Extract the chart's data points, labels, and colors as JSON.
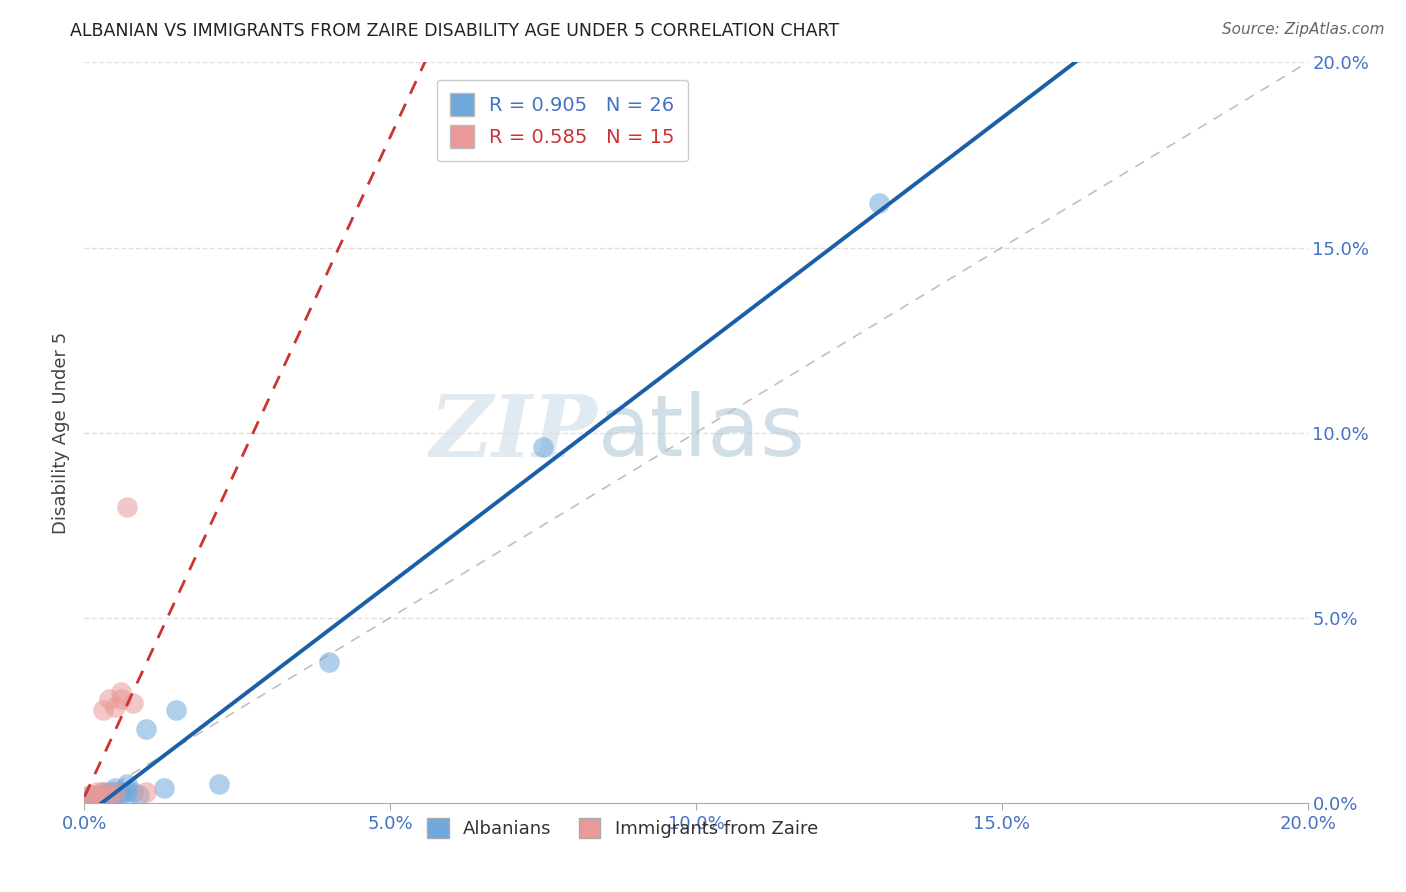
{
  "title": "ALBANIAN VS IMMIGRANTS FROM ZAIRE DISABILITY AGE UNDER 5 CORRELATION CHART",
  "source": "Source: ZipAtlas.com",
  "tick_color": "#4472c4",
  "ylabel": "Disability Age Under 5",
  "xlim": [
    0,
    0.2
  ],
  "ylim": [
    0,
    0.2
  ],
  "xtick_vals": [
    0.0,
    0.05,
    0.1,
    0.15,
    0.2
  ],
  "ytick_vals": [
    0.0,
    0.05,
    0.1,
    0.15,
    0.2
  ],
  "watermark_zip": "ZIP",
  "watermark_atlas": "atlas",
  "albanian_color": "#6fa8dc",
  "zaire_color": "#ea9999",
  "albanian_line_color": "#1a5fa8",
  "zaire_line_color": "#cc3333",
  "legend_R_albanian": "R = 0.905",
  "legend_N_albanian": "N = 26",
  "legend_R_zaire": "R = 0.585",
  "legend_N_zaire": "N = 15",
  "albanian_x": [
    0.001,
    0.001,
    0.002,
    0.002,
    0.003,
    0.003,
    0.003,
    0.004,
    0.004,
    0.004,
    0.005,
    0.005,
    0.005,
    0.006,
    0.006,
    0.007,
    0.007,
    0.008,
    0.009,
    0.01,
    0.013,
    0.015,
    0.022,
    0.04,
    0.075,
    0.13
  ],
  "albanian_y": [
    0.001,
    0.002,
    0.002,
    0.001,
    0.002,
    0.003,
    0.002,
    0.001,
    0.003,
    0.002,
    0.003,
    0.002,
    0.004,
    0.003,
    0.002,
    0.005,
    0.003,
    0.003,
    0.002,
    0.02,
    0.004,
    0.025,
    0.005,
    0.038,
    0.096,
    0.162
  ],
  "zaire_x": [
    0.001,
    0.001,
    0.002,
    0.002,
    0.003,
    0.003,
    0.004,
    0.004,
    0.005,
    0.005,
    0.006,
    0.006,
    0.007,
    0.008,
    0.01
  ],
  "zaire_y": [
    0.001,
    0.002,
    0.002,
    0.003,
    0.003,
    0.025,
    0.002,
    0.028,
    0.026,
    0.003,
    0.03,
    0.028,
    0.08,
    0.027,
    0.003
  ],
  "grid_color": "#e0e0e0",
  "background_color": "#ffffff",
  "diag_color": "#c0c0c0"
}
